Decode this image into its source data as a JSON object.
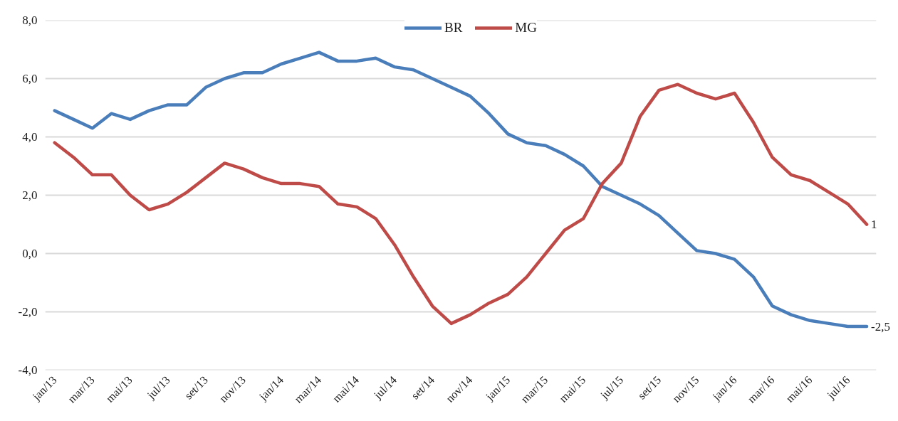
{
  "chart_data": {
    "type": "line",
    "categories": [
      "jan/13",
      null,
      "mar/13",
      null,
      "mai/13",
      null,
      "jul/13",
      null,
      "set/13",
      null,
      "nov/13",
      null,
      "jan/14",
      null,
      "mar/14",
      null,
      "mai/14",
      null,
      "jul/14",
      null,
      "set/14",
      null,
      "nov/14",
      null,
      "jan/15",
      null,
      "mar/15",
      null,
      "mai/15",
      null,
      "jul/15",
      null,
      "set/15",
      null,
      "nov/15",
      null,
      "jan/16",
      null,
      "mar/16",
      null,
      "mai/16",
      null,
      "jul/16",
      null
    ],
    "series": [
      {
        "name": "BR",
        "color": "#4a7ebb",
        "values": [
          4.9,
          4.6,
          4.3,
          4.8,
          4.6,
          4.9,
          5.1,
          5.1,
          5.7,
          6.0,
          6.2,
          6.2,
          6.5,
          6.7,
          6.9,
          6.6,
          6.6,
          6.7,
          6.4,
          6.3,
          6.0,
          5.7,
          5.4,
          4.8,
          4.1,
          3.8,
          3.7,
          3.4,
          3.0,
          2.3,
          2.0,
          1.7,
          1.3,
          0.7,
          0.1,
          0.0,
          -0.2,
          -0.8,
          -1.8,
          -2.1,
          -2.3,
          -2.4,
          -2.5,
          -2.5
        ],
        "value_labels": [
          null,
          null,
          null,
          null,
          null,
          null,
          null,
          null,
          null,
          null,
          null,
          null,
          null,
          null,
          null,
          null,
          null,
          null,
          null,
          null,
          null,
          null,
          null,
          null,
          null,
          null,
          null,
          null,
          null,
          null,
          null,
          null,
          null,
          null,
          null,
          null,
          null,
          null,
          null,
          null,
          null,
          null,
          null,
          "-2,5"
        ]
      },
      {
        "name": "MG",
        "color": "#be4b48",
        "values": [
          3.8,
          3.3,
          2.7,
          2.7,
          2.0,
          1.5,
          1.7,
          2.1,
          2.6,
          3.1,
          2.9,
          2.6,
          2.4,
          2.4,
          2.3,
          1.7,
          1.6,
          1.2,
          0.3,
          -0.8,
          -1.8,
          -2.4,
          -2.1,
          -1.7,
          -1.4,
          -0.8,
          0.0,
          0.8,
          1.2,
          2.4,
          3.1,
          4.7,
          5.6,
          5.8,
          5.5,
          5.3,
          5.5,
          4.5,
          3.3,
          2.7,
          2.5,
          2.1,
          1.7,
          1.0
        ],
        "value_labels": [
          null,
          null,
          null,
          null,
          null,
          null,
          null,
          null,
          null,
          null,
          null,
          null,
          null,
          null,
          null,
          null,
          null,
          null,
          null,
          null,
          null,
          null,
          null,
          null,
          null,
          null,
          null,
          null,
          null,
          null,
          null,
          null,
          null,
          null,
          null,
          null,
          null,
          null,
          null,
          null,
          null,
          null,
          null,
          "1"
        ]
      }
    ],
    "ylim": [
      -4,
      8
    ],
    "yticks": [
      {
        "value": -4,
        "label": "-4,0"
      },
      {
        "value": -2,
        "label": "-2,0"
      },
      {
        "value": 0,
        "label": "0,0"
      },
      {
        "value": 2,
        "label": "2,0"
      },
      {
        "value": 4,
        "label": "4,0"
      },
      {
        "value": 6,
        "label": "6,0"
      },
      {
        "value": 8,
        "label": "8,0"
      }
    ],
    "grid": "y",
    "legend": "top",
    "line_style": "solid"
  }
}
